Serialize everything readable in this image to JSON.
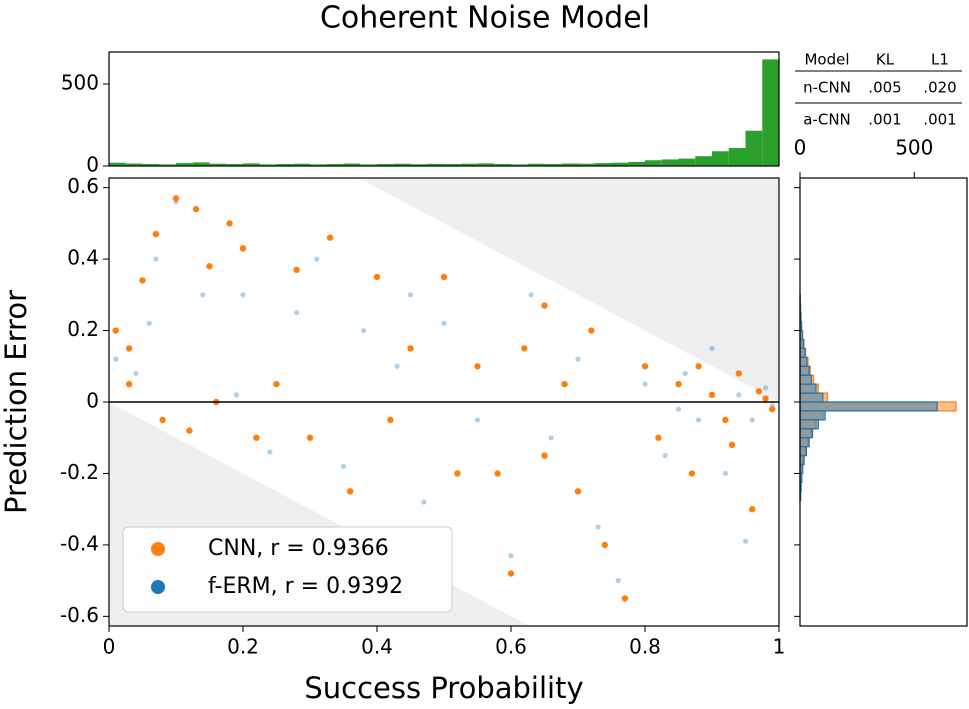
{
  "title": "Coherent Noise Model",
  "chart_data": [
    {
      "type": "scatter",
      "xlabel": "Success Probability",
      "ylabel": "Prediction Error",
      "xlim": [
        0,
        1
      ],
      "ylim": [
        -0.627,
        0.627
      ],
      "xticks": [
        0,
        0.2,
        0.4,
        0.6,
        0.8,
        1
      ],
      "yticks": [
        0.6,
        0.4,
        0.2,
        0,
        -0.2,
        -0.4,
        -0.6
      ],
      "legend": "lower left",
      "series": [
        {
          "name": "f-ERM, r = 0.9392",
          "color": "#1f77b4",
          "x": [
            0.01,
            0.04,
            0.06,
            0.1,
            0.14,
            0.19,
            0.2,
            0.24,
            0.28,
            0.31,
            0.35,
            0.38,
            0.43,
            0.47,
            0.5,
            0.55,
            0.6,
            0.63,
            0.66,
            0.7,
            0.73,
            0.76,
            0.8,
            0.83,
            0.86,
            0.88,
            0.9,
            0.92,
            0.94,
            0.96,
            0.98,
            0.99,
            0.95,
            0.07,
            0.45,
            0.85
          ],
          "values": [
            0.12,
            0.08,
            0.22,
            0.56,
            0.3,
            0.02,
            0.3,
            -0.14,
            0.25,
            0.4,
            -0.18,
            0.2,
            0.1,
            -0.28,
            0.22,
            -0.05,
            -0.43,
            0.3,
            -0.1,
            0.12,
            -0.35,
            -0.5,
            0.05,
            -0.15,
            0.08,
            -0.05,
            0.15,
            -0.2,
            0.02,
            -0.05,
            0.04,
            -0.01,
            -0.39,
            0.4,
            0.3,
            -0.02
          ]
        },
        {
          "name": "CNN, r = 0.9366",
          "color": "#ff7f0e",
          "x": [
            0.01,
            0.03,
            0.05,
            0.07,
            0.1,
            0.13,
            0.15,
            0.18,
            0.2,
            0.22,
            0.25,
            0.28,
            0.3,
            0.33,
            0.36,
            0.4,
            0.42,
            0.45,
            0.5,
            0.52,
            0.55,
            0.58,
            0.6,
            0.62,
            0.65,
            0.68,
            0.7,
            0.72,
            0.74,
            0.77,
            0.8,
            0.82,
            0.85,
            0.87,
            0.9,
            0.92,
            0.94,
            0.96,
            0.98,
            0.99,
            0.08,
            0.12,
            0.16,
            0.03,
            0.88,
            0.93,
            0.97,
            0.65
          ],
          "values": [
            0.2,
            0.05,
            0.34,
            0.47,
            0.57,
            0.54,
            0.38,
            0.5,
            0.43,
            -0.1,
            0.05,
            0.37,
            -0.1,
            0.46,
            -0.25,
            0.35,
            -0.05,
            0.15,
            0.35,
            -0.2,
            0.1,
            -0.2,
            -0.48,
            0.15,
            -0.15,
            0.05,
            -0.25,
            0.2,
            -0.4,
            -0.55,
            0.1,
            -0.1,
            0.05,
            -0.2,
            0.02,
            -0.05,
            0.08,
            -0.3,
            0.01,
            -0.02,
            -0.05,
            -0.08,
            0,
            0.15,
            0.1,
            -0.12,
            0.03,
            0.27
          ]
        }
      ]
    },
    {
      "type": "histogram",
      "orientation": "vertical",
      "color": "#2ca02c",
      "xlim": [
        0,
        1
      ],
      "ylim": [
        0,
        695
      ],
      "yticks": [
        0,
        500
      ],
      "bins": [
        0,
        0.025,
        0.05,
        0.075,
        0.1,
        0.125,
        0.15,
        0.175,
        0.2,
        0.225,
        0.25,
        0.275,
        0.3,
        0.325,
        0.35,
        0.375,
        0.4,
        0.425,
        0.45,
        0.475,
        0.5,
        0.525,
        0.55,
        0.575,
        0.6,
        0.625,
        0.65,
        0.675,
        0.7,
        0.725,
        0.75,
        0.775,
        0.8,
        0.825,
        0.85,
        0.875,
        0.9,
        0.925,
        0.95,
        0.975,
        1
      ],
      "values": [
        20,
        15,
        12,
        10,
        18,
        22,
        14,
        12,
        16,
        10,
        12,
        14,
        10,
        12,
        15,
        10,
        12,
        14,
        11,
        13,
        12,
        14,
        16,
        12,
        10,
        14,
        12,
        15,
        14,
        18,
        20,
        25,
        35,
        40,
        45,
        60,
        90,
        110,
        215,
        650
      ]
    },
    {
      "type": "histogram",
      "orientation": "horizontal",
      "xlim": [
        0,
        735
      ],
      "xticks": [
        0,
        500
      ],
      "ylim": [
        -0.627,
        0.627
      ],
      "bins": [
        -0.3,
        -0.275,
        -0.25,
        -0.225,
        -0.2,
        -0.175,
        -0.15,
        -0.125,
        -0.1,
        -0.075,
        -0.05,
        -0.025,
        0,
        0.025,
        0.05,
        0.075,
        0.1,
        0.125,
        0.15,
        0.175,
        0.2,
        0.225,
        0.25,
        0.275,
        0.3
      ],
      "series": [
        {
          "color": "#ff7f0e",
          "values": [
            0,
            2,
            4,
            6,
            10,
            15,
            25,
            35,
            50,
            70,
            100,
            683,
            120,
            80,
            60,
            45,
            35,
            25,
            18,
            12,
            8,
            5,
            3,
            1
          ]
        },
        {
          "color": "#1f77b4",
          "values": [
            0,
            3,
            5,
            8,
            12,
            18,
            28,
            40,
            55,
            80,
            110,
            600,
            100,
            70,
            50,
            40,
            30,
            22,
            15,
            10,
            6,
            4,
            2,
            1
          ]
        }
      ]
    }
  ],
  "table": {
    "columns": [
      "Model",
      "KL",
      "L1"
    ],
    "rows": [
      [
        "n-CNN",
        ".005",
        ".020"
      ],
      [
        "a-CNN",
        ".001",
        ".001"
      ]
    ]
  }
}
